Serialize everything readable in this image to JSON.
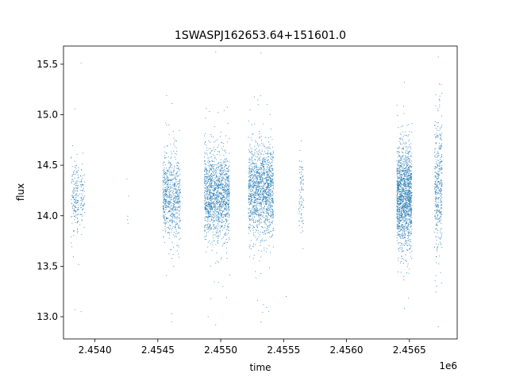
{
  "chart_data": {
    "type": "scatter",
    "title": "1SWASPJ162653.64+151601.0",
    "xlabel": "time",
    "ylabel": "flux",
    "x_offset_label": "1e6",
    "xlim": [
      2.45375,
      2.45688
    ],
    "ylim": [
      12.78,
      15.68
    ],
    "x_ticks": [
      2.454,
      2.4545,
      2.455,
      2.4555,
      2.456,
      2.4565
    ],
    "x_tick_labels": [
      "2.4540",
      "2.4545",
      "2.4550",
      "2.4555",
      "2.4560",
      "2.4565"
    ],
    "y_ticks": [
      13.0,
      13.5,
      14.0,
      14.5,
      15.0,
      15.5
    ],
    "y_tick_labels": [
      "13.0",
      "13.5",
      "14.0",
      "14.5",
      "15.0",
      "15.5"
    ],
    "grid": false,
    "marker_color": "#1f77b4",
    "clusters": [
      {
        "x_center": 2.45384,
        "x_halfwidth": 3e-05,
        "y_mean": 14.2,
        "y_sd": 0.17,
        "n": 160
      },
      {
        "x_center": 2.4539,
        "x_halfwidth": 2e-05,
        "y_mean": 14.2,
        "y_sd": 0.15,
        "n": 70
      },
      {
        "x_center": 2.45426,
        "x_halfwidth": 1e-05,
        "y_mean": 14.1,
        "y_sd": 0.15,
        "n": 4
      },
      {
        "x_center": 2.45461,
        "x_halfwidth": 7e-05,
        "y_mean": 14.2,
        "y_sd": 0.2,
        "n": 700
      },
      {
        "x_center": 2.45497,
        "x_halfwidth": 0.0001,
        "y_mean": 14.2,
        "y_sd": 0.22,
        "n": 1400
      },
      {
        "x_center": 2.45532,
        "x_halfwidth": 0.0001,
        "y_mean": 14.25,
        "y_sd": 0.23,
        "n": 1400
      },
      {
        "x_center": 2.45564,
        "x_halfwidth": 2e-05,
        "y_mean": 14.2,
        "y_sd": 0.18,
        "n": 80
      },
      {
        "x_center": 2.45646,
        "x_halfwidth": 6e-05,
        "y_mean": 14.2,
        "y_sd": 0.25,
        "n": 1500
      },
      {
        "x_center": 2.45673,
        "x_halfwidth": 3e-05,
        "y_mean": 14.3,
        "y_sd": 0.33,
        "n": 400
      }
    ],
    "outliers": [
      {
        "x": 2.45384,
        "y": 15.06
      },
      {
        "x": 2.45389,
        "y": 15.51
      },
      {
        "x": 2.45389,
        "y": 13.05
      },
      {
        "x": 2.45384,
        "y": 13.07
      },
      {
        "x": 2.45461,
        "y": 13.03
      },
      {
        "x": 2.45461,
        "y": 12.95
      },
      {
        "x": 2.45457,
        "y": 15.19
      },
      {
        "x": 2.45496,
        "y": 15.62
      },
      {
        "x": 2.45496,
        "y": 12.92
      },
      {
        "x": 2.4549,
        "y": 13.0
      },
      {
        "x": 2.45532,
        "y": 15.61
      },
      {
        "x": 2.45532,
        "y": 12.95
      },
      {
        "x": 2.45538,
        "y": 13.05
      },
      {
        "x": 2.45552,
        "y": 13.2
      },
      {
        "x": 2.45564,
        "y": 14.74
      },
      {
        "x": 2.45646,
        "y": 13.08
      },
      {
        "x": 2.45646,
        "y": 15.32
      },
      {
        "x": 2.45673,
        "y": 15.57
      },
      {
        "x": 2.45673,
        "y": 12.9
      },
      {
        "x": 2.45426,
        "y": 13.96
      }
    ]
  }
}
